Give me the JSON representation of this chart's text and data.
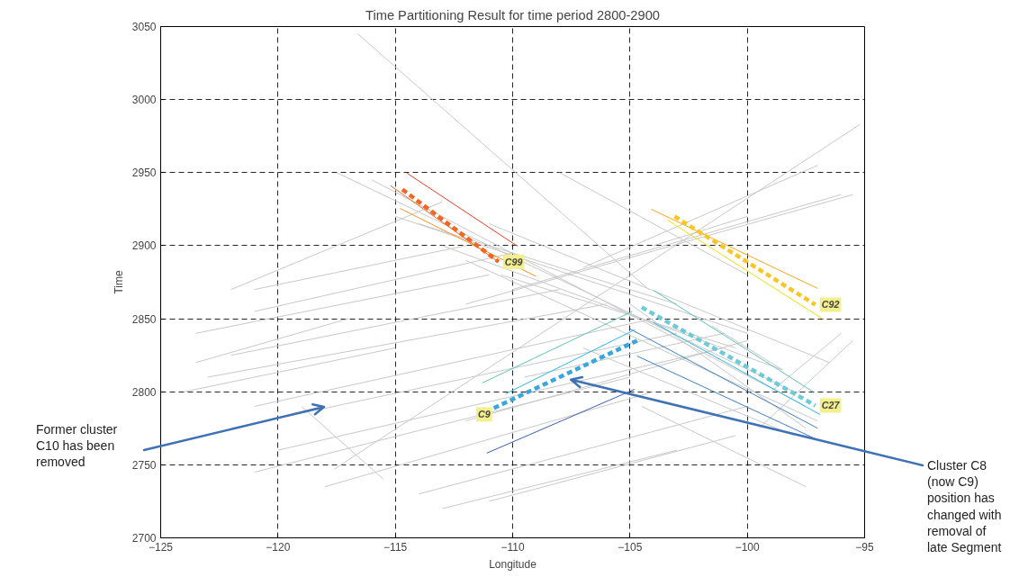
{
  "chart_data": {
    "type": "line",
    "title": "Time Partitioning Result for time period 2800-2900",
    "xlabel": "Longitude",
    "ylabel": "Time",
    "xlim": [
      -125,
      -95
    ],
    "ylim": [
      2700,
      3050
    ],
    "xticks": [
      -125,
      -120,
      -115,
      -110,
      -105,
      -100,
      -95
    ],
    "yticks": [
      2700,
      2750,
      2800,
      2850,
      2900,
      2950,
      3000,
      3050
    ],
    "grid": true,
    "series": [
      {
        "color": "#c8c8c8",
        "x": [
          -116.6,
          -104.2
        ],
        "values": [
          3045,
          2870
        ]
      },
      {
        "color": "#c8c8c8",
        "x": [
          -117.5,
          -98
        ],
        "values": [
          2950,
          2800
        ]
      },
      {
        "color": "#c8c8c8",
        "x": [
          -116,
          -97.5
        ],
        "values": [
          2945,
          2790
        ]
      },
      {
        "color": "#c8c8c8",
        "x": [
          -115,
          -100
        ],
        "values": [
          2920,
          2840
        ]
      },
      {
        "color": "#c8c8c8",
        "x": [
          -114,
          -103
        ],
        "values": [
          2915,
          2860
        ]
      },
      {
        "color": "#c8c8c8",
        "x": [
          -113,
          -98.5
        ],
        "values": [
          2900,
          2815
        ]
      },
      {
        "color": "#c8c8c8",
        "x": [
          -112,
          -97
        ],
        "values": [
          2890,
          2780
        ]
      },
      {
        "color": "#c8c8c8",
        "x": [
          -111,
          -96.5
        ],
        "values": [
          2915,
          2820
        ]
      },
      {
        "color": "#c8c8c8",
        "x": [
          -110.5,
          -100.5
        ],
        "values": [
          2880,
          2830
        ]
      },
      {
        "color": "#c8c8c8",
        "x": [
          -108,
          -100
        ],
        "values": [
          2950,
          2880
        ]
      },
      {
        "color": "#c8c8c8",
        "x": [
          -105,
          -97.5
        ],
        "values": [
          2860,
          2775
        ]
      },
      {
        "color": "#c8c8c8",
        "x": [
          -107,
          -98
        ],
        "values": [
          2830,
          2770
        ]
      },
      {
        "color": "#c8c8c8",
        "x": [
          -104.5,
          -97.5
        ],
        "values": [
          2790,
          2735
        ]
      },
      {
        "color": "#c8c8c8",
        "x": [
          -119,
          -115.5
        ],
        "values": [
          2790,
          2740
        ]
      },
      {
        "color": "#c8c8c8",
        "x": [
          -101.5,
          -98.5
        ],
        "values": [
          2845,
          2815
        ]
      },
      {
        "color": "#c8c8c8",
        "x": [
          -117.6,
          -95.2
        ],
        "values": [
          2747,
          2983
        ]
      },
      {
        "color": "#c8c8c8",
        "x": [
          -121,
          -112
        ],
        "values": [
          2870,
          2900
        ]
      },
      {
        "color": "#c8c8c8",
        "x": [
          -122,
          -113
        ],
        "values": [
          2870,
          2930
        ]
      },
      {
        "color": "#c8c8c8",
        "x": [
          -121,
          -110
        ],
        "values": [
          2855,
          2895
        ]
      },
      {
        "color": "#c8c8c8",
        "x": [
          -123.5,
          -111
        ],
        "values": [
          2840,
          2880
        ]
      },
      {
        "color": "#c8c8c8",
        "x": [
          -122,
          -108
        ],
        "values": [
          2825,
          2870
        ]
      },
      {
        "color": "#c8c8c8",
        "x": [
          -123,
          -106
        ],
        "values": [
          2810,
          2860
        ]
      },
      {
        "color": "#c8c8c8",
        "x": [
          -121,
          -104
        ],
        "values": [
          2790,
          2850
        ]
      },
      {
        "color": "#c8c8c8",
        "x": [
          -122,
          -103
        ],
        "values": [
          2775,
          2840
        ]
      },
      {
        "color": "#c8c8c8",
        "x": [
          -120,
          -101
        ],
        "values": [
          2760,
          2830
        ]
      },
      {
        "color": "#c8c8c8",
        "x": [
          -121,
          -105
        ],
        "values": [
          2745,
          2810
        ]
      },
      {
        "color": "#c8c8c8",
        "x": [
          -118,
          -104
        ],
        "values": [
          2735,
          2800
        ]
      },
      {
        "color": "#c8c8c8",
        "x": [
          -114,
          -100
        ],
        "values": [
          2730,
          2790
        ]
      },
      {
        "color": "#c8c8c8",
        "x": [
          -113,
          -103
        ],
        "values": [
          2720,
          2760
        ]
      },
      {
        "color": "#c8c8c8",
        "x": [
          -111,
          -100.5
        ],
        "values": [
          2725,
          2770
        ]
      },
      {
        "color": "#c8c8c8",
        "x": [
          -110,
          -96
        ],
        "values": [
          2870,
          2935
        ]
      },
      {
        "color": "#c8c8c8",
        "x": [
          -107,
          -97
        ],
        "values": [
          2885,
          2955
        ]
      },
      {
        "color": "#c8c8c8",
        "x": [
          -104,
          -100
        ],
        "values": [
          2900,
          2920
        ]
      },
      {
        "color": "#c8c8c8",
        "x": [
          -112,
          -95.5
        ],
        "values": [
          2860,
          2935
        ]
      },
      {
        "color": "#c8c8c8",
        "x": [
          -99,
          -96
        ],
        "values": [
          2800,
          2840
        ]
      },
      {
        "color": "#c8c8c8",
        "x": [
          -99.5,
          -95.5
        ],
        "values": [
          2775,
          2835
        ]
      },
      {
        "color": "#c8c8c8",
        "x": [
          -112,
          -100
        ],
        "values": [
          2780,
          2835
        ]
      },
      {
        "color": "#c8c8c8",
        "x": [
          -123.5,
          -117
        ],
        "values": [
          2820,
          2850
        ]
      },
      {
        "color": "#c8c8c8",
        "x": [
          -124,
          -115
        ],
        "values": [
          2800,
          2830
        ]
      },
      {
        "color": "#c8c8c8",
        "x": [
          -109.5,
          -101
        ],
        "values": [
          2810,
          2840
        ]
      },
      {
        "color": "#ee3a24",
        "x": [
          -114.5,
          -109.8
        ],
        "values": [
          2949.6,
          2899.7
        ]
      },
      {
        "color": "#f26522",
        "x": [
          -115.2,
          -110.7
        ],
        "values": [
          2941,
          2890
        ]
      },
      {
        "color": "#f7941d",
        "x": [
          -114.8,
          -109.0
        ],
        "values": [
          2925.5,
          2879
        ]
      },
      {
        "color": "#f26522",
        "line_style": "dashed",
        "x": [
          -114.7,
          -110.6
        ],
        "values": [
          2938.5,
          2889
        ]
      },
      {
        "color": "#f7a81b",
        "x": [
          -104.1,
          -97.0
        ],
        "values": [
          2925,
          2870.7
        ]
      },
      {
        "color": "#f2e000",
        "x": [
          -103.4,
          -96.8
        ],
        "values": [
          2917.5,
          2850
        ]
      },
      {
        "color": "#f9c623",
        "line_style": "dashed",
        "x": [
          -103.1,
          -97.1
        ],
        "values": [
          2920,
          2859.6
        ]
      },
      {
        "color": "#5fc4b0",
        "x": [
          -104.0,
          -97.2
        ],
        "values": [
          2869.5,
          2800
        ]
      },
      {
        "color": "#29b6e8",
        "x": [
          -104.0,
          -96.9
        ],
        "values": [
          2847.3,
          2784.4
        ]
      },
      {
        "color": "#3c7fc6",
        "x": [
          -105.0,
          -97.0
        ],
        "values": [
          2843,
          2775
        ]
      },
      {
        "color": "#3c7fc6",
        "x": [
          -104.7,
          -97.1
        ],
        "values": [
          2824.5,
          2767.8
        ]
      },
      {
        "color": "#6dcbd8",
        "line_style": "dashed",
        "x": [
          -104.5,
          -97.1
        ],
        "values": [
          2857.8,
          2790.6
        ]
      },
      {
        "color": "#5fc4b0",
        "x": [
          -111.3,
          -104.9
        ],
        "values": [
          2806,
          2855
        ]
      },
      {
        "color": "#29b6e8",
        "x": [
          -110.3,
          -104.8
        ],
        "values": [
          2798.6,
          2842.4
        ]
      },
      {
        "color": "#3a5fad",
        "x": [
          -111.1,
          -104.8
        ],
        "values": [
          2758,
          2801.7
        ]
      },
      {
        "color": "#3aa6e0",
        "line_style": "dashed",
        "x": [
          -110.8,
          -104.7
        ],
        "values": [
          2788.8,
          2835
        ]
      }
    ],
    "annotations": [
      "Former cluster C10 has been removed",
      {
        "text": "Cluster C8 (now C9) position has changed with removal of late Segment",
        "x": -107.5,
        "y": 2808
      },
      {
        "text": "C99",
        "x": -110.6,
        "y": 2889
      },
      {
        "text": "C92",
        "x": -97.1,
        "y": 2859.6
      },
      {
        "text": "C27",
        "x": -97.1,
        "y": 2790.6
      },
      {
        "text": "C9",
        "x": -110.8,
        "y": 2788.8
      }
    ]
  }
}
